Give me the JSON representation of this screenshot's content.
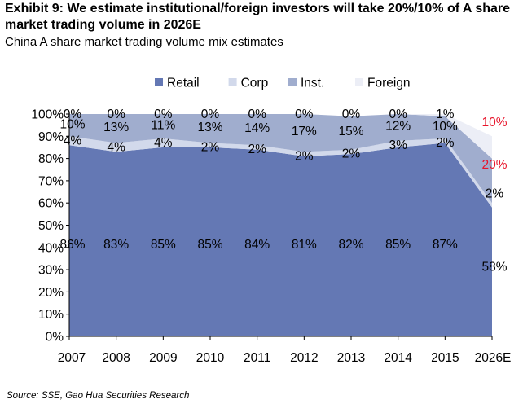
{
  "title": "Exhibit 9: We estimate institutional/foreign investors will take 20%/10% of A share market trading volume in 2026E",
  "subtitle": "China A share market trading volume mix estimates",
  "source": "Source: SSE, Gao Hua Securities Research",
  "chart_data": {
    "type": "area",
    "stacked": true,
    "categories": [
      "2007",
      "2008",
      "2009",
      "2010",
      "2011",
      "2012",
      "2013",
      "2014",
      "2015",
      "2026E"
    ],
    "series": [
      {
        "name": "Retail",
        "values": [
          86,
          83,
          85,
          85,
          84,
          81,
          82,
          85,
          87,
          58
        ],
        "color": "#6478b4",
        "labels": [
          "86%",
          "83%",
          "85%",
          "85%",
          "84%",
          "81%",
          "82%",
          "85%",
          "87%",
          "58%"
        ]
      },
      {
        "name": "Corp",
        "values": [
          4,
          4,
          4,
          2,
          2,
          2,
          2,
          3,
          2,
          2
        ],
        "color": "#d2d9eb",
        "labels": [
          "4%",
          "4%",
          "4%",
          "2%",
          "2%",
          "2%",
          "2%",
          "3%",
          "2%",
          "2%"
        ]
      },
      {
        "name": "Inst.",
        "values": [
          10,
          13,
          11,
          13,
          14,
          17,
          15,
          12,
          10,
          20
        ],
        "color": "#a0adce",
        "labels": [
          "10%",
          "13%",
          "11%",
          "13%",
          "14%",
          "17%",
          "15%",
          "12%",
          "10%",
          "20%"
        ]
      },
      {
        "name": "Foreign",
        "values": [
          0,
          0,
          0,
          0,
          0,
          0,
          0,
          0,
          1,
          10
        ],
        "color": "#eceef6",
        "labels": [
          "0%",
          "0%",
          "0%",
          "0%",
          "0%",
          "0%",
          "0%",
          "0%",
          "1%",
          "10%"
        ]
      }
    ],
    "highlight_color": "#e8142a",
    "highlight_category": "2026E",
    "ylim": [
      0,
      100
    ],
    "yticks": [
      "0%",
      "10%",
      "20%",
      "30%",
      "40%",
      "50%",
      "60%",
      "70%",
      "80%",
      "90%",
      "100%"
    ],
    "legend_position": "top-center",
    "grid": false
  }
}
